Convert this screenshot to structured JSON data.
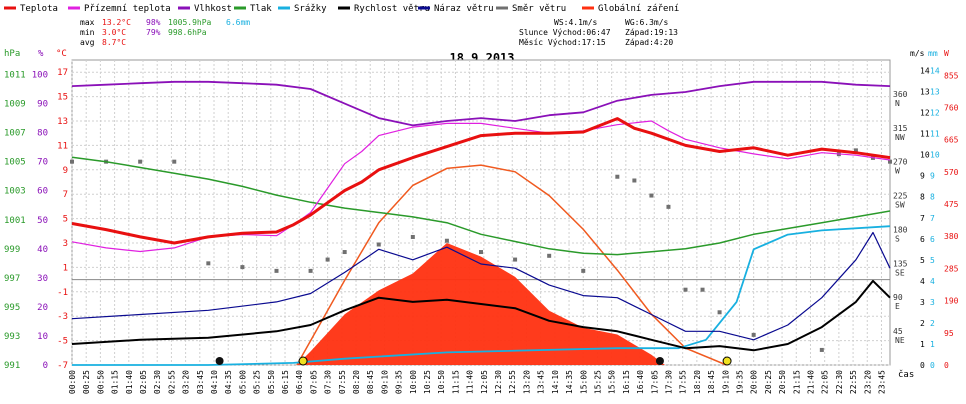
{
  "chart_data": {
    "type": "line",
    "title": "18.9.2013",
    "legend": [
      {
        "name": "Teplota",
        "color": "#e81010"
      },
      {
        "name": "Přízemní teplota",
        "color": "#e020e0"
      },
      {
        "name": "Vlhkost",
        "color": "#8a10b8"
      },
      {
        "name": "Tlak",
        "color": "#2a9a2a"
      },
      {
        "name": "Srážky",
        "color": "#18b0e0"
      },
      {
        "name": "Rychlost větru",
        "color": "#000000"
      },
      {
        "name": "Náraz větru",
        "color": "#0a0a90"
      },
      {
        "name": "Směr větru",
        "color": "#707070"
      },
      {
        "name": "Globální záření",
        "color": "#ff3010"
      }
    ],
    "stats": {
      "max": {
        "label": "max",
        "temp": "13.2°C",
        "hum": "98%",
        "press": "1005.9hPa",
        "rain": "6.6mm"
      },
      "min": {
        "label": "min",
        "temp": "3.0°C",
        "hum": "79%",
        "press": "998.6hPa"
      },
      "avg": {
        "label": "avg",
        "temp": "8.7°C"
      }
    },
    "info": {
      "ws": "WS:4.1m/s",
      "wg": "WG:6.3m/s",
      "sun_rise": "Slunce Východ:06:47",
      "sun_set": "Západ:19:13",
      "moon_rise": "Měsíc Východ:17:15",
      "moon_set": "Západ:4:20"
    },
    "axes": {
      "hpa": {
        "unit": "hPa",
        "ticks": [
          "1011",
          "1009",
          "1007",
          "1005",
          "1003",
          "1001",
          "999",
          "997",
          "995",
          "993",
          "991"
        ],
        "range": [
          991,
          1012
        ]
      },
      "percent": {
        "unit": "%",
        "ticks": [
          "100",
          "90",
          "80",
          "70",
          "60",
          "50",
          "40",
          "30",
          "20",
          "10",
          "0"
        ],
        "range": [
          0,
          105
        ]
      },
      "celsius": {
        "unit": "°C",
        "ticks": [
          "17",
          "15",
          "13",
          "11",
          "9",
          "7",
          "5",
          "3",
          "1",
          "-1",
          "-3",
          "-5",
          "-7"
        ],
        "range": [
          -7,
          18
        ]
      },
      "direction": {
        "unit": "°",
        "ticks": [
          {
            "v": "360",
            "c": "N"
          },
          {
            "v": "315",
            "c": "NW"
          },
          {
            "v": "270",
            "c": "W"
          },
          {
            "v": "225",
            "c": "SW"
          },
          {
            "v": "180",
            "c": "S"
          },
          {
            "v": "135",
            "c": "SE"
          },
          {
            "v": "90",
            "c": "E"
          },
          {
            "v": "45",
            "c": "NE"
          }
        ]
      },
      "ms": {
        "unit": "m/s",
        "ticks": [
          "14",
          "13",
          "12",
          "11",
          "10",
          "9",
          "8",
          "7",
          "6",
          "5",
          "4",
          "3",
          "2",
          "1",
          "0"
        ],
        "range": [
          0,
          14.5
        ]
      },
      "mm": {
        "unit": "mm",
        "ticks": [
          "14",
          "13",
          "12",
          "11",
          "10",
          "9",
          "8",
          "7",
          "6",
          "5",
          "4",
          "3",
          "2",
          "1",
          "0"
        ]
      },
      "w": {
        "unit": "W",
        "ticks": [
          "855",
          "760",
          "665",
          "570",
          "475",
          "380",
          "285",
          "190",
          "95",
          "0"
        ],
        "range": [
          0,
          900
        ]
      },
      "time_label": "čas",
      "time_ticks": [
        "00:00",
        "00:25",
        "00:50",
        "01:15",
        "01:40",
        "02:05",
        "02:30",
        "02:55",
        "03:20",
        "03:45",
        "04:10",
        "04:35",
        "05:00",
        "05:25",
        "05:50",
        "06:15",
        "06:40",
        "07:05",
        "07:30",
        "07:55",
        "08:20",
        "08:45",
        "09:10",
        "09:35",
        "10:00",
        "10:25",
        "10:50",
        "11:15",
        "11:40",
        "12:05",
        "12:30",
        "12:55",
        "13:20",
        "13:45",
        "14:10",
        "14:35",
        "15:00",
        "15:25",
        "15:50",
        "16:15",
        "16:40",
        "17:05",
        "17:30",
        "17:55",
        "18:20",
        "18:45",
        "19:10",
        "19:35",
        "20:00",
        "20:25",
        "20:50",
        "21:15",
        "21:40",
        "22:05",
        "22:30",
        "22:55",
        "23:20",
        "23:45"
      ]
    },
    "series": [
      {
        "name": "Teplota",
        "unit": "°C",
        "color": "#e81010",
        "x": [
          0,
          1,
          2,
          3,
          4,
          5,
          6,
          6.5,
          7,
          7.5,
          8,
          8.5,
          9,
          10,
          11,
          12,
          13,
          14,
          15,
          16,
          16.5,
          17,
          18,
          19,
          20,
          21,
          22,
          23,
          24
        ],
        "y": [
          4.6,
          4.1,
          3.5,
          3.0,
          3.5,
          3.8,
          3.9,
          4.5,
          5.3,
          6.3,
          7.3,
          8.0,
          9.0,
          10.0,
          10.9,
          11.8,
          12.0,
          12.0,
          12.1,
          13.2,
          12.4,
          12.0,
          11.0,
          10.5,
          10.8,
          10.2,
          10.7,
          10.4,
          10.0
        ]
      },
      {
        "name": "Přízemní teplota",
        "unit": "°C",
        "color": "#e020e0",
        "x": [
          0,
          1,
          2,
          3,
          4,
          5,
          6,
          6.5,
          7,
          7.5,
          8,
          8.5,
          9,
          10,
          11,
          12,
          13,
          14,
          15,
          16,
          17,
          17.5,
          18,
          19,
          20,
          21,
          22,
          23,
          24
        ],
        "y": [
          3.1,
          2.6,
          2.3,
          2.6,
          3.5,
          3.7,
          3.6,
          4.5,
          5.5,
          7.5,
          9.5,
          10.5,
          11.8,
          12.5,
          12.8,
          12.8,
          12.4,
          12.0,
          12.2,
          12.7,
          13.0,
          12.2,
          11.5,
          10.8,
          10.3,
          9.9,
          10.4,
          10.2,
          9.8
        ]
      },
      {
        "name": "Vlhkost",
        "unit": "%",
        "color": "#8a10b8",
        "x": [
          0,
          1,
          2,
          3,
          4,
          5,
          6,
          7,
          8,
          9,
          10,
          11,
          12,
          13,
          14,
          15,
          16,
          17,
          18,
          19,
          20,
          21,
          22,
          23,
          24
        ],
        "y": [
          96,
          96.5,
          97,
          97.5,
          97.5,
          97,
          96.5,
          95,
          90,
          85,
          82.5,
          84,
          85,
          84,
          86,
          87,
          91,
          93,
          94,
          96,
          97.5,
          97.5,
          97.5,
          96.5,
          96
        ]
      },
      {
        "name": "Tlak",
        "unit": "hPa",
        "color": "#2a9a2a",
        "x": [
          0,
          1,
          2,
          3,
          4,
          5,
          6,
          7,
          8,
          9,
          10,
          11,
          12,
          13,
          14,
          15,
          16,
          17,
          18,
          19,
          20,
          21,
          22,
          23,
          24
        ],
        "y": [
          1005.3,
          1005.0,
          1004.6,
          1004.2,
          1003.8,
          1003.3,
          1002.7,
          1002.2,
          1001.8,
          1001.5,
          1001.2,
          1000.8,
          1000.0,
          999.5,
          999.0,
          998.7,
          998.6,
          998.8,
          999.0,
          999.4,
          1000.0,
          1000.4,
          1000.8,
          1001.2,
          1001.6
        ]
      },
      {
        "name": "Srážky",
        "unit": "mm",
        "color": "#18b0e0",
        "x": [
          0,
          4,
          6.5,
          8,
          11,
          16,
          17.8,
          18.6,
          19.5,
          20,
          21,
          22,
          24
        ],
        "y": [
          0,
          0,
          0.1,
          0.3,
          0.6,
          0.8,
          0.8,
          1.2,
          3.0,
          5.5,
          6.2,
          6.4,
          6.6
        ]
      },
      {
        "name": "Globální záření",
        "unit": "W",
        "color": "#ff3010",
        "x": [
          0,
          6.6,
          7,
          8,
          9,
          10,
          11,
          12,
          13,
          14,
          15,
          16,
          17,
          17.4,
          24
        ],
        "y": [
          0,
          0,
          40,
          150,
          220,
          270,
          360,
          320,
          260,
          160,
          110,
          90,
          30,
          0,
          0
        ],
        "clear_sky": {
          "x": [
            6.6,
            8,
            9,
            10,
            11,
            12,
            13,
            14,
            15,
            16,
            17,
            18,
            19.2
          ],
          "y": [
            0,
            250,
            420,
            530,
            580,
            590,
            570,
            500,
            400,
            280,
            150,
            50,
            0
          ]
        }
      },
      {
        "name": "Rychlost větru",
        "unit": "m/s",
        "color": "#000000",
        "x": [
          0,
          2,
          4,
          6,
          7,
          8,
          9,
          10,
          11,
          12,
          13,
          14,
          15,
          16,
          17,
          18,
          19,
          20,
          21,
          22,
          23,
          23.5,
          24
        ],
        "y": [
          1.0,
          1.2,
          1.3,
          1.6,
          1.9,
          2.6,
          3.2,
          3.0,
          3.1,
          2.9,
          2.7,
          2.1,
          1.8,
          1.6,
          1.2,
          0.8,
          0.9,
          0.7,
          1.0,
          1.8,
          3.0,
          4.0,
          3.2
        ]
      },
      {
        "name": "Náraz větru",
        "unit": "m/s",
        "color": "#0a0a90",
        "x": [
          0,
          2,
          4,
          6,
          7,
          8,
          9,
          10,
          11,
          12,
          13,
          14,
          15,
          16,
          17,
          18,
          19,
          20,
          21,
          22,
          23,
          23.5,
          24
        ],
        "y": [
          2.2,
          2.4,
          2.6,
          3.0,
          3.4,
          4.4,
          5.5,
          5.0,
          5.6,
          4.8,
          4.6,
          3.8,
          3.3,
          3.2,
          2.4,
          1.6,
          1.6,
          1.2,
          1.9,
          3.2,
          5.0,
          6.3,
          4.6
        ]
      },
      {
        "name": "Směr větru",
        "unit": "°",
        "color": "#707070",
        "x": [
          0,
          1,
          2,
          3,
          4,
          5,
          6,
          7,
          7.5,
          8,
          9,
          10,
          11,
          12,
          13,
          14,
          15,
          16,
          16.5,
          17,
          17.5,
          18,
          18.5,
          19,
          20,
          22,
          22.5,
          23,
          23.5,
          24
        ],
        "y": [
          270,
          270,
          270,
          270,
          135,
          130,
          125,
          125,
          140,
          150,
          160,
          170,
          165,
          150,
          140,
          145,
          125,
          250,
          245,
          225,
          210,
          100,
          100,
          70,
          40,
          20,
          280,
          285,
          275,
          270
        ]
      }
    ],
    "markers": {
      "sun": {
        "rise": 6.78,
        "set": 19.22,
        "color": "#f0e020"
      },
      "moon": {
        "rise": 17.25,
        "set": 4.33,
        "color": "#101010"
      }
    },
    "grid": true
  }
}
